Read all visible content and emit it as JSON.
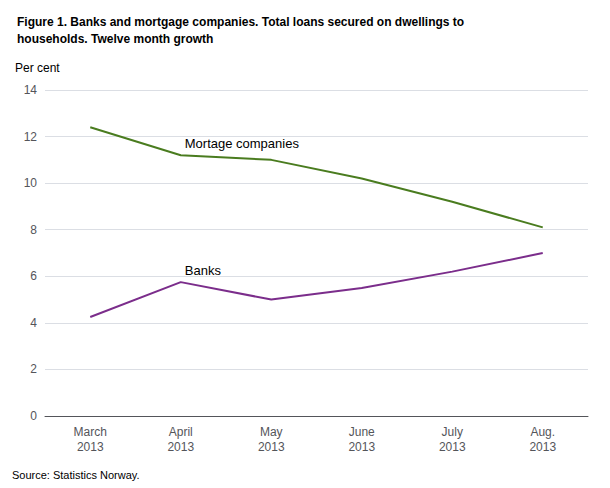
{
  "chart_data": {
    "type": "line",
    "title": "Figure 1. Banks and mortgage companies. Total loans secured on dwellings to\nhouseholds. Twelve month growth",
    "ylabel": "Per cent",
    "source": "Source: Statistics Norway.",
    "categories": [
      "March\n2013",
      "April\n2013",
      "May\n2013",
      "June\n2013",
      "July\n2013",
      "Aug.\n2013"
    ],
    "series": [
      {
        "name": "Mortage companies",
        "color": "#4a7c1f",
        "values": [
          12.4,
          11.2,
          11.0,
          10.2,
          9.2,
          8.1
        ]
      },
      {
        "name": "Banks",
        "color": "#7b2d8b",
        "values": [
          4.25,
          5.75,
          5.0,
          5.5,
          6.2,
          7.0
        ]
      }
    ],
    "ylim": [
      0,
      14
    ],
    "yticks": [
      0,
      2,
      4,
      6,
      8,
      10,
      12,
      14
    ],
    "grid": true
  }
}
